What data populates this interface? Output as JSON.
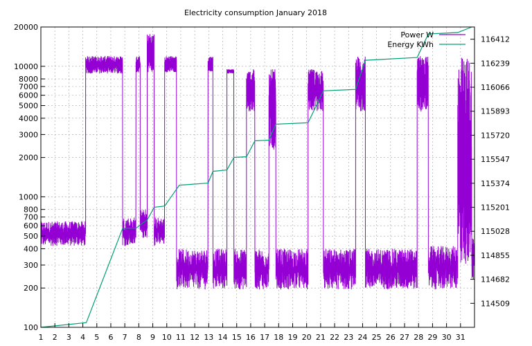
{
  "chart_data": {
    "type": "line",
    "title": "Electricity consumption January 2018",
    "xlabel": "",
    "ylabel": "",
    "x_ticks": [
      1,
      2,
      3,
      4,
      5,
      6,
      7,
      8,
      9,
      10,
      11,
      12,
      13,
      14,
      15,
      16,
      17,
      18,
      19,
      20,
      21,
      22,
      23,
      24,
      25,
      26,
      27,
      28,
      29,
      30,
      31
    ],
    "xlim": [
      1,
      32
    ],
    "y_left_scale": "log",
    "y_left_lim": [
      100,
      20000
    ],
    "y_left_ticks": [
      100,
      200,
      300,
      400,
      500,
      600,
      700,
      800,
      1000,
      2000,
      3000,
      4000,
      5000,
      6000,
      7000,
      8000,
      10000,
      20000
    ],
    "y_right_lim": [
      114336,
      116500
    ],
    "y_right_ticks": [
      114509,
      114682,
      114855,
      115028,
      115201,
      115374,
      115547,
      115720,
      115893,
      116066,
      116239,
      116412
    ],
    "grid": true,
    "legend_position": "top-right",
    "series": [
      {
        "name": "Power W",
        "axis": "left",
        "color": "#9400d3",
        "segments": [
          {
            "x_start": 1.0,
            "x_end": 4.2,
            "level": "base",
            "low": 420,
            "high": 650
          },
          {
            "x_start": 4.2,
            "x_end": 6.85,
            "level": "high",
            "low": 8800,
            "high": 12000
          },
          {
            "x_start": 6.85,
            "x_end": 7.8,
            "level": "base",
            "low": 420,
            "high": 700
          },
          {
            "x_start": 7.8,
            "x_end": 8.1,
            "level": "high",
            "low": 9000,
            "high": 12000
          },
          {
            "x_start": 8.1,
            "x_end": 8.6,
            "level": "base",
            "low": 480,
            "high": 800
          },
          {
            "x_start": 8.6,
            "x_end": 9.1,
            "level": "high",
            "low": 9000,
            "high": 18000
          },
          {
            "x_start": 9.1,
            "x_end": 9.85,
            "level": "base",
            "low": 420,
            "high": 700
          },
          {
            "x_start": 9.85,
            "x_end": 10.7,
            "level": "high",
            "low": 9000,
            "high": 12000
          },
          {
            "x_start": 10.7,
            "x_end": 12.95,
            "level": "base",
            "low": 195,
            "high": 400
          },
          {
            "x_start": 12.95,
            "x_end": 13.3,
            "level": "high",
            "low": 9000,
            "high": 12000
          },
          {
            "x_start": 13.3,
            "x_end": 14.3,
            "level": "base",
            "low": 195,
            "high": 400
          },
          {
            "x_start": 14.3,
            "x_end": 14.8,
            "level": "high",
            "low": 8800,
            "high": 9500
          },
          {
            "x_start": 14.8,
            "x_end": 15.7,
            "level": "base",
            "low": 195,
            "high": 400
          },
          {
            "x_start": 15.7,
            "x_end": 16.3,
            "level": "high",
            "low": 4500,
            "high": 9500
          },
          {
            "x_start": 16.3,
            "x_end": 17.3,
            "level": "base",
            "low": 195,
            "high": 400
          },
          {
            "x_start": 17.3,
            "x_end": 17.8,
            "level": "high",
            "low": 2300,
            "high": 9500
          },
          {
            "x_start": 17.8,
            "x_end": 20.1,
            "level": "base",
            "low": 195,
            "high": 400
          },
          {
            "x_start": 20.1,
            "x_end": 21.2,
            "level": "high",
            "low": 4500,
            "high": 9500
          },
          {
            "x_start": 21.2,
            "x_end": 23.5,
            "level": "base",
            "low": 195,
            "high": 400
          },
          {
            "x_start": 23.5,
            "x_end": 24.2,
            "level": "high",
            "low": 4500,
            "high": 12000
          },
          {
            "x_start": 24.2,
            "x_end": 27.9,
            "level": "base",
            "low": 195,
            "high": 400
          },
          {
            "x_start": 27.9,
            "x_end": 28.7,
            "level": "high",
            "low": 4500,
            "high": 12000
          },
          {
            "x_start": 28.7,
            "x_end": 30.8,
            "level": "base",
            "low": 195,
            "high": 420
          },
          {
            "x_start": 30.8,
            "x_end": 31.8,
            "level": "high",
            "low": 300,
            "high": 12000
          },
          {
            "x_start": 31.8,
            "x_end": 32.0,
            "level": "base",
            "low": 230,
            "high": 500
          }
        ]
      },
      {
        "name": "Energy KWh",
        "axis": "right",
        "color": "#009e73",
        "points": [
          [
            1.0,
            114336
          ],
          [
            4.25,
            114370
          ],
          [
            6.85,
            115050
          ],
          [
            7.8,
            115050
          ],
          [
            8.6,
            115110
          ],
          [
            9.1,
            115201
          ],
          [
            9.85,
            115210
          ],
          [
            10.9,
            115360
          ],
          [
            12.95,
            115375
          ],
          [
            13.3,
            115460
          ],
          [
            14.3,
            115470
          ],
          [
            14.8,
            115560
          ],
          [
            15.7,
            115565
          ],
          [
            16.3,
            115680
          ],
          [
            17.3,
            115685
          ],
          [
            17.8,
            115800
          ],
          [
            20.1,
            115810
          ],
          [
            21.2,
            116040
          ],
          [
            23.5,
            116050
          ],
          [
            24.2,
            116260
          ],
          [
            27.9,
            116280
          ],
          [
            28.7,
            116450
          ],
          [
            30.8,
            116460
          ],
          [
            31.8,
            116560
          ]
        ]
      }
    ]
  }
}
